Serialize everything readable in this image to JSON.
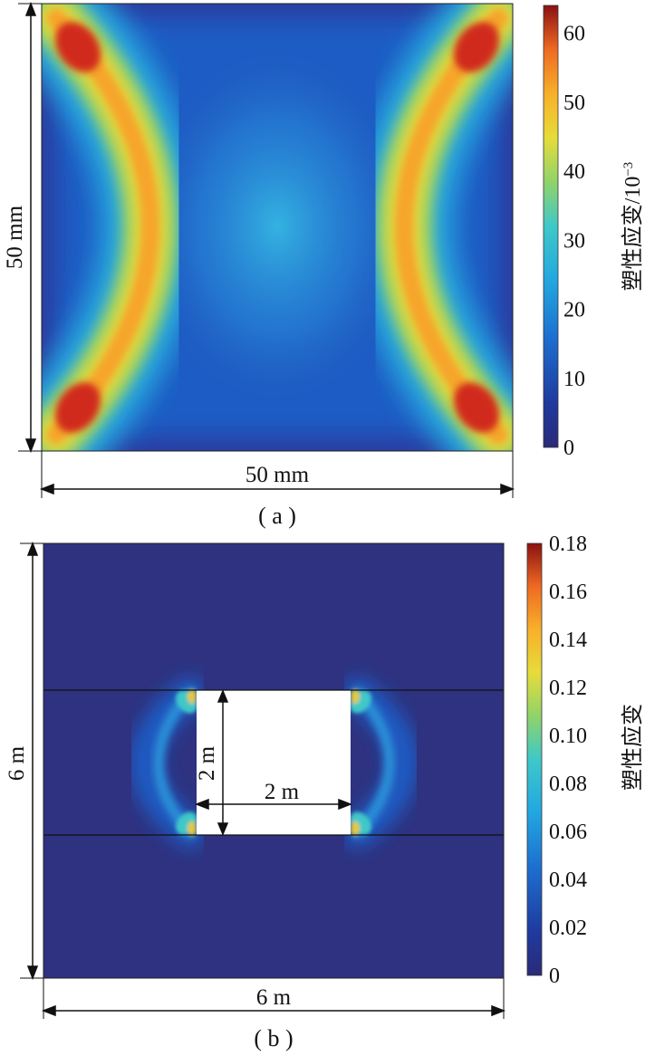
{
  "panel_a": {
    "caption": "( a )",
    "width_label": "50 mm",
    "height_label": "50 mm",
    "colorbar": {
      "title": "塑性应变/10",
      "title_exponent": "−3",
      "ticks": [
        "0",
        "10",
        "20",
        "30",
        "40",
        "50",
        "60"
      ],
      "tick_values": [
        0,
        10,
        20,
        30,
        40,
        50,
        60
      ],
      "max_value": 64
    }
  },
  "panel_b": {
    "caption": "( b )",
    "width_label": "6 m",
    "height_label": "6 m",
    "opening_width_label": "2 m",
    "opening_height_label": "2 m",
    "colorbar": {
      "title": "塑性应变",
      "ticks": [
        "0",
        "0.02",
        "0.04",
        "0.06",
        "0.08",
        "0.10",
        "0.12",
        "0.14",
        "0.16",
        "0.18"
      ],
      "tick_values": [
        0,
        0.02,
        0.04,
        0.06,
        0.08,
        0.1,
        0.12,
        0.14,
        0.16,
        0.18
      ],
      "max_value": 0.18
    }
  },
  "colors": {
    "jet": [
      "#2b2a78",
      "#1f3a9e",
      "#1d6fd0",
      "#22a8e0",
      "#3fc8c8",
      "#8fd36a",
      "#e6dc3a",
      "#f7b02a",
      "#ef6a22",
      "#c81e1e",
      "#8b1111"
    ],
    "background_field": "#2e3280"
  }
}
